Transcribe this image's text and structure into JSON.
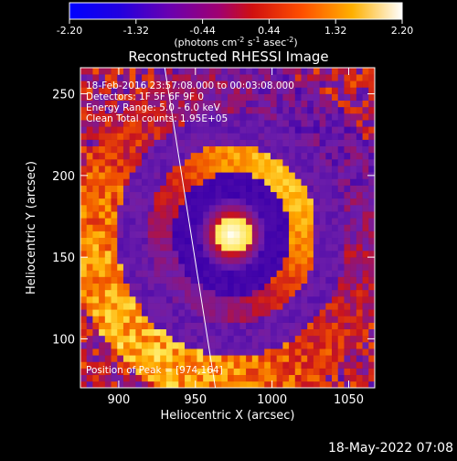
{
  "chart_data": {
    "type": "heatmap",
    "title": "Reconstructed RHESSI Image",
    "xlabel": "Heliocentric X (arcsec)",
    "ylabel": "Heliocentric Y (arcsec)",
    "xlim": [
      875,
      1067
    ],
    "ylim": [
      70,
      266
    ],
    "xticks": [
      900,
      950,
      1000,
      1050
    ],
    "yticks": [
      100,
      150,
      200,
      250
    ],
    "colorbar": {
      "range": [
        -2.2,
        2.2
      ],
      "ticks": [
        "-2.20",
        "-1.32",
        "-0.44",
        "0.44",
        "1.32",
        "2.20"
      ],
      "unit_prefix": "(photons cm",
      "unit_exp1": "-2",
      "unit_mid1": " s",
      "unit_exp2": "-1",
      "unit_mid2": " asec",
      "unit_exp3": "-2",
      "unit_suffix": ")"
    },
    "annotations": [
      "18-Feb-2016 23:57:08.000 to 00:03:08.000",
      "Detectors: 1F 5F 6F 9F 0",
      "Energy Range: 5.0 - 6.0 keV",
      "Clean    Total counts: 1.95E+05"
    ],
    "peak_label": "Position of Peak = [974,164]",
    "peak": [
      974,
      164
    ],
    "limb_line": [
      [
        930,
        266
      ],
      [
        963,
        70
      ]
    ]
  },
  "footer_date": "18-May-2022 07:08"
}
